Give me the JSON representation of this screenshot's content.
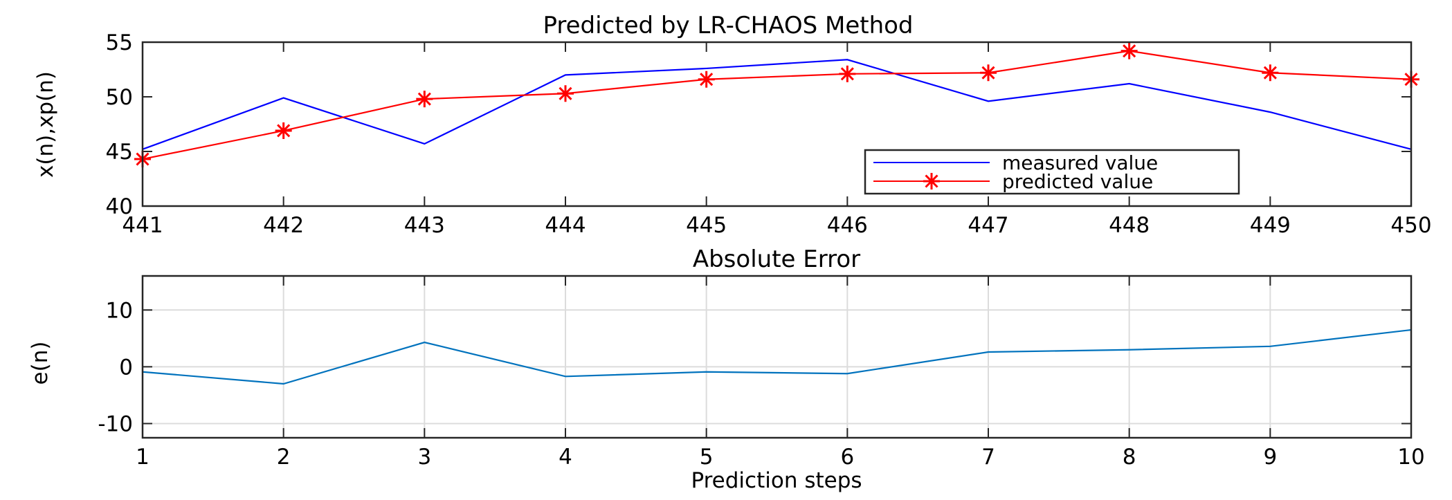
{
  "chart_data": [
    {
      "type": "line",
      "title": "Predicted  by LR-CHAOS Method",
      "xlabel": "",
      "ylabel": "x(n),xp(n)",
      "x": [
        441,
        442,
        443,
        444,
        445,
        446,
        447,
        448,
        449,
        450
      ],
      "xlim": [
        441,
        450
      ],
      "ylim": [
        40,
        55
      ],
      "xticks": [
        441,
        442,
        443,
        444,
        445,
        446,
        447,
        448,
        449,
        450
      ],
      "yticks": [
        40,
        45,
        50,
        55
      ],
      "grid": false,
      "legend_position": "bottom-right",
      "series": [
        {
          "name": "measured value",
          "color": "#0000ff",
          "marker": "none",
          "values": [
            45.2,
            49.9,
            45.7,
            52.0,
            52.6,
            53.4,
            49.6,
            51.2,
            48.6,
            45.2
          ]
        },
        {
          "name": "predicted value",
          "color": "#ff0000",
          "marker": "asterisk",
          "values": [
            44.3,
            46.9,
            49.8,
            50.3,
            51.6,
            52.1,
            52.2,
            54.2,
            52.2,
            51.6
          ]
        }
      ]
    },
    {
      "type": "line",
      "title": "Absolute Error",
      "xlabel": "Prediction steps",
      "ylabel": "e(n)",
      "x": [
        1,
        2,
        3,
        4,
        5,
        6,
        7,
        8,
        9,
        10
      ],
      "xlim": [
        1,
        10
      ],
      "ylim": [
        -12.5,
        16
      ],
      "xticks": [
        1,
        2,
        3,
        4,
        5,
        6,
        7,
        8,
        9,
        10
      ],
      "yticks": [
        -10,
        0,
        10
      ],
      "grid": true,
      "series": [
        {
          "color": "#0072bd",
          "values": [
            -0.9,
            -3.0,
            4.3,
            -1.7,
            -0.9,
            -1.2,
            2.6,
            3.0,
            3.6,
            6.5
          ]
        }
      ]
    }
  ]
}
